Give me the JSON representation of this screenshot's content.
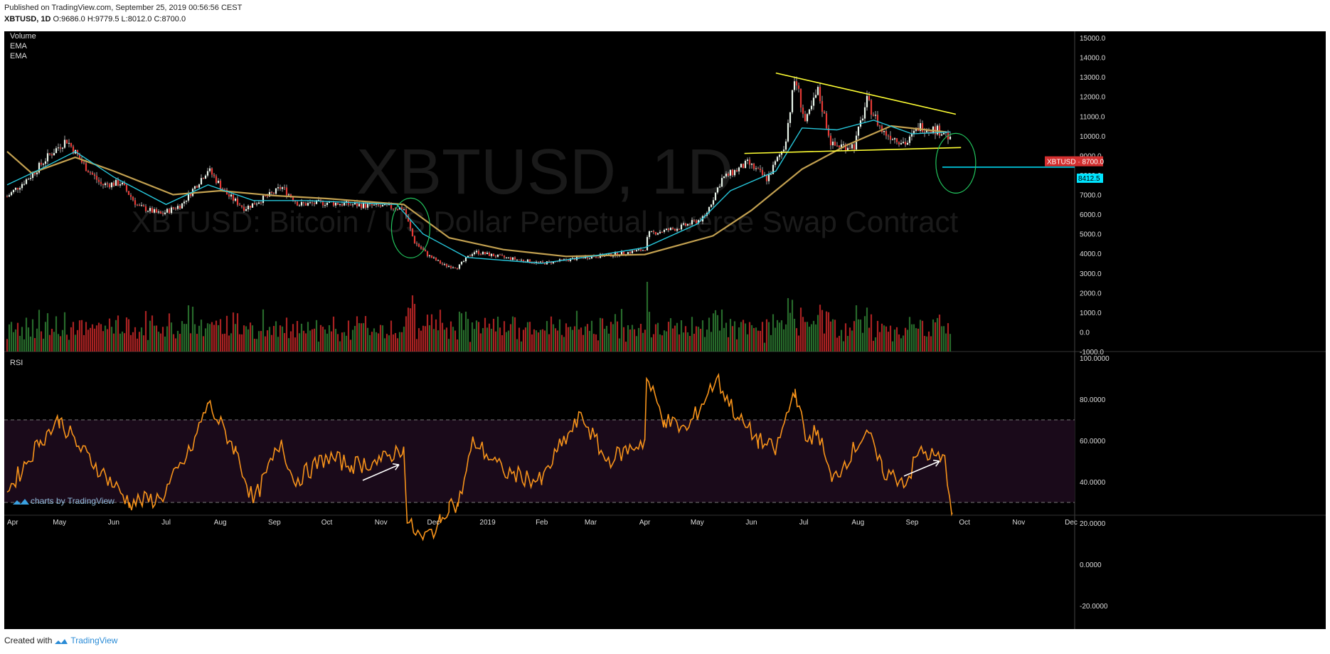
{
  "header": {
    "published": "Published on TradingView.com, September 25, 2019 00:56:56 CEST",
    "symbol": "XBTUSD, 1D",
    "o_label": "O:",
    "o": "9686.0",
    "h_label": "H:",
    "h": "9779.5",
    "l_label": "L:",
    "l": "8012.0",
    "c_label": "C:",
    "c": "8700.0"
  },
  "legend": [
    "Volume",
    "EMA",
    "EMA"
  ],
  "watermark": {
    "line1": "XBTUSD, 1D",
    "line2": "XBTUSD: Bitcoin / US Dollar Perpetual Inverse Swap Contract"
  },
  "rsi_label": "RSI",
  "brand_text": "charts by TradingView",
  "footer": {
    "created": "Created with",
    "brand": "TradingView"
  },
  "colors": {
    "background": "#000000",
    "up": "#26a69a",
    "down": "#ef5350",
    "ema_fast": "#26c6da",
    "ema_slow": "#c2a050",
    "rsi": "#f7931a",
    "trendline": "#ffff33",
    "circle": "#22c55e",
    "price_tag": "#d32f2f",
    "level_line": "#00e5ff"
  },
  "chart_data": [
    {
      "type": "candlestick",
      "title": "XBTUSD, 1D",
      "x_axis_labels": [
        "Apr",
        "May",
        "Jun",
        "Jul",
        "Aug",
        "Sep",
        "Oct",
        "Nov",
        "Dec",
        "2019",
        "Feb",
        "Mar",
        "Apr",
        "May",
        "Jun",
        "Jul",
        "Aug",
        "Sep",
        "Oct",
        "Nov",
        "Dec"
      ],
      "y_ticks": [
        "15000.0",
        "14000.0",
        "13000.0",
        "12000.0",
        "11000.0",
        "10000.0",
        "9000.0",
        "8000.0",
        "7000.0",
        "6000.0",
        "5000.0",
        "4000.0",
        "3000.0",
        "2000.0",
        "1000.0",
        "0.0",
        "-1000.0"
      ],
      "close_path": [
        [
          "2018-04-01",
          6900
        ],
        [
          "2018-04-15",
          8000
        ],
        [
          "2018-04-25",
          9000
        ],
        [
          "2018-05-05",
          9800
        ],
        [
          "2018-05-15",
          8500
        ],
        [
          "2018-05-25",
          7500
        ],
        [
          "2018-06-05",
          7600
        ],
        [
          "2018-06-15",
          6400
        ],
        [
          "2018-06-28",
          6000
        ],
        [
          "2018-07-10",
          6500
        ],
        [
          "2018-07-25",
          8300
        ],
        [
          "2018-08-05",
          7000
        ],
        [
          "2018-08-15",
          6300
        ],
        [
          "2018-09-01",
          7100
        ],
        [
          "2018-09-05",
          7400
        ],
        [
          "2018-09-15",
          6500
        ],
        [
          "2018-10-01",
          6600
        ],
        [
          "2018-10-15",
          6500
        ],
        [
          "2018-11-01",
          6400
        ],
        [
          "2018-11-14",
          6300
        ],
        [
          "2018-11-20",
          4600
        ],
        [
          "2018-11-28",
          3900
        ],
        [
          "2018-12-07",
          3400
        ],
        [
          "2018-12-15",
          3300
        ],
        [
          "2018-12-24",
          4100
        ],
        [
          "2019-01-10",
          3800
        ],
        [
          "2019-02-01",
          3500
        ],
        [
          "2019-02-10",
          3600
        ],
        [
          "2019-02-24",
          3800
        ],
        [
          "2019-03-15",
          3950
        ],
        [
          "2019-04-01",
          4200
        ],
        [
          "2019-04-03",
          5000
        ],
        [
          "2019-04-20",
          5300
        ],
        [
          "2019-05-05",
          5800
        ],
        [
          "2019-05-15",
          7800
        ],
        [
          "2019-05-30",
          8600
        ],
        [
          "2019-06-10",
          7800
        ],
        [
          "2019-06-20",
          9500
        ],
        [
          "2019-06-26",
          13000
        ],
        [
          "2019-07-02",
          10600
        ],
        [
          "2019-07-09",
          12300
        ],
        [
          "2019-07-17",
          9500
        ],
        [
          "2019-07-30",
          9500
        ],
        [
          "2019-08-06",
          11800
        ],
        [
          "2019-08-15",
          10200
        ],
        [
          "2019-08-29",
          9600
        ],
        [
          "2019-09-05",
          10500
        ],
        [
          "2019-09-20",
          10200
        ],
        [
          "2019-09-23",
          9700
        ],
        [
          "2019-09-24",
          8700
        ]
      ],
      "ema_fast_path": [
        [
          "2018-04-01",
          7500
        ],
        [
          "2018-04-20",
          8300
        ],
        [
          "2018-05-10",
          9200
        ],
        [
          "2018-06-01",
          7900
        ],
        [
          "2018-07-01",
          6500
        ],
        [
          "2018-07-25",
          7500
        ],
        [
          "2018-08-20",
          6700
        ],
        [
          "2018-09-20",
          6700
        ],
        [
          "2018-11-10",
          6500
        ],
        [
          "2018-11-25",
          5000
        ],
        [
          "2018-12-20",
          3800
        ],
        [
          "2019-02-01",
          3500
        ],
        [
          "2019-03-01",
          3850
        ],
        [
          "2019-04-01",
          4300
        ],
        [
          "2019-05-01",
          5500
        ],
        [
          "2019-05-20",
          7200
        ],
        [
          "2019-06-15",
          8200
        ],
        [
          "2019-06-30",
          10400
        ],
        [
          "2019-07-20",
          10300
        ],
        [
          "2019-08-10",
          10800
        ],
        [
          "2019-09-01",
          10100
        ],
        [
          "2019-09-23",
          10200
        ]
      ],
      "ema_slow_path": [
        [
          "2018-04-01",
          9200
        ],
        [
          "2018-04-15",
          8100
        ],
        [
          "2018-05-10",
          8900
        ],
        [
          "2018-06-01",
          8200
        ],
        [
          "2018-07-05",
          7000
        ],
        [
          "2018-08-01",
          7200
        ],
        [
          "2018-09-01",
          6950
        ],
        [
          "2018-10-01",
          6800
        ],
        [
          "2018-11-14",
          6500
        ],
        [
          "2018-12-10",
          4800
        ],
        [
          "2019-01-10",
          4200
        ],
        [
          "2019-02-15",
          3850
        ],
        [
          "2019-04-01",
          3950
        ],
        [
          "2019-05-10",
          4900
        ],
        [
          "2019-06-01",
          6200
        ],
        [
          "2019-06-30",
          8300
        ],
        [
          "2019-07-25",
          9500
        ],
        [
          "2019-08-20",
          10500
        ],
        [
          "2019-09-20",
          10200
        ]
      ],
      "annotations": {
        "upper_trendline": [
          [
            "2019-06-15",
            13200
          ],
          [
            "2019-09-26",
            11100
          ]
        ],
        "lower_trendline": [
          [
            "2019-05-28",
            9100
          ],
          [
            "2019-09-29",
            9400
          ]
        ],
        "level_line_price": 8400,
        "price_tag": "XBTUSD · 8700.0",
        "level_tag": "8412.5"
      },
      "volume_note": "Volume bars (red/green) at bottom of price pane"
    },
    {
      "type": "line",
      "title": "RSI",
      "y_ticks": [
        "100.0000",
        "80.0000",
        "60.0000",
        "40.0000",
        "20.0000",
        "0.0000",
        "-20.0000"
      ],
      "bands": [
        30,
        70
      ],
      "series": [
        {
          "values": [
            [
              "2018-04-01",
              35
            ],
            [
              "2018-04-20",
              60
            ],
            [
              "2018-05-01",
              70
            ],
            [
              "2018-05-12",
              57
            ],
            [
              "2018-05-25",
              45
            ],
            [
              "2018-06-10",
              30
            ],
            [
              "2018-06-28",
              32
            ],
            [
              "2018-07-15",
              55
            ],
            [
              "2018-07-25",
              78
            ],
            [
              "2018-08-10",
              55
            ],
            [
              "2018-08-20",
              30
            ],
            [
              "2018-09-05",
              60
            ],
            [
              "2018-09-12",
              40
            ],
            [
              "2018-10-01",
              52
            ],
            [
              "2018-10-15",
              48
            ],
            [
              "2018-11-01",
              50
            ],
            [
              "2018-11-14",
              57
            ],
            [
              "2018-11-16",
              20
            ],
            [
              "2018-11-25",
              12
            ],
            [
              "2018-12-05",
              20
            ],
            [
              "2018-12-10",
              30
            ],
            [
              "2018-12-15",
              28
            ],
            [
              "2018-12-24",
              60
            ],
            [
              "2019-01-10",
              45
            ],
            [
              "2019-02-01",
              40
            ],
            [
              "2019-02-10",
              55
            ],
            [
              "2019-02-24",
              72
            ],
            [
              "2019-03-10",
              50
            ],
            [
              "2019-04-01",
              60
            ],
            [
              "2019-04-02",
              90
            ],
            [
              "2019-04-12",
              70
            ],
            [
              "2019-04-25",
              65
            ],
            [
              "2019-05-12",
              90
            ],
            [
              "2019-05-25",
              70
            ],
            [
              "2019-06-05",
              60
            ],
            [
              "2019-06-15",
              55
            ],
            [
              "2019-06-26",
              85
            ],
            [
              "2019-07-02",
              60
            ],
            [
              "2019-07-09",
              65
            ],
            [
              "2019-07-17",
              40
            ],
            [
              "2019-08-06",
              65
            ],
            [
              "2019-08-15",
              45
            ],
            [
              "2019-08-29",
              40
            ],
            [
              "2019-09-05",
              55
            ],
            [
              "2019-09-20",
              50
            ],
            [
              "2019-09-24",
              25
            ]
          ]
        }
      ]
    }
  ]
}
